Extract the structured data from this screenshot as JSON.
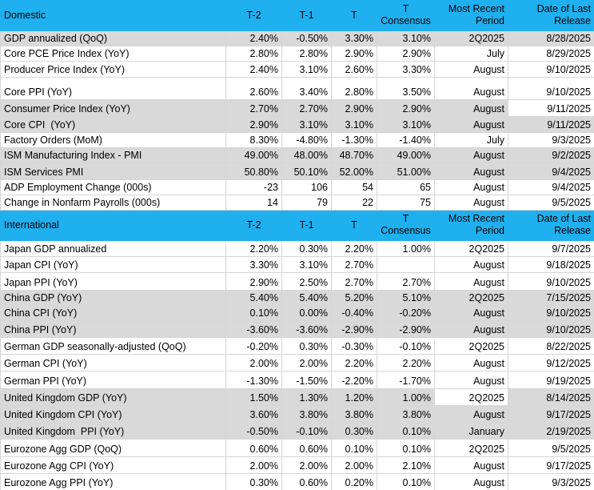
{
  "sections": [
    {
      "header": [
        "Domestic",
        "T-2",
        "T-1",
        "T",
        "T Consensus",
        "Most Recent Period",
        "Date of Last Release"
      ],
      "rows": [
        [
          "GDP annualized (QoQ)",
          "2.40%",
          "-0.50%",
          "3.30%",
          "3.10%",
          "2Q2025",
          "8/28/2025"
        ],
        [
          "Core PCE Price Index (YoY)",
          "2.80%",
          "2.80%",
          "2.90%",
          "2.90%",
          "July",
          "8/29/2025"
        ],
        [
          "Producer Price Index (YoY)",
          "2.40%",
          "3.10%",
          "2.60%",
          "3.30%",
          "August",
          "9/10/2025"
        ],
        [
          "Core PPI (YoY)",
          "2.60%",
          "3.40%",
          "2.80%",
          "3.50%",
          "August",
          "9/10/2025"
        ],
        [
          "Consumer Price Index (YoY)",
          "2.70%",
          "2.70%",
          "2.90%",
          "2.90%",
          "August",
          "9/11/2025"
        ],
        [
          "Core CPI  (YoY)",
          "2.90%",
          "3.10%",
          "3.10%",
          "3.10%",
          "August",
          "9/11/2025"
        ],
        [
          "Factory Orders (MoM)",
          "8.30%",
          "-4.80%",
          "-1.30%",
          "-1.40%",
          "July",
          "9/3/2025"
        ],
        [
          "ISM Manufacturing Index - PMI",
          "49.00%",
          "48.00%",
          "48.70%",
          "49.00%",
          "August",
          "9/2/2025"
        ],
        [
          "ISM Services PMI",
          "50.80%",
          "50.10%",
          "52.00%",
          "51.00%",
          "August",
          "9/4/2025"
        ],
        [
          "ADP Employment Change (000s)",
          "-23",
          "106",
          "54",
          "65",
          "August",
          "9/4/2025"
        ],
        [
          "Change in Nonfarm Payrolls (000s)",
          "14",
          "79",
          "22",
          "75",
          "August",
          "9/5/2025"
        ]
      ]
    },
    {
      "header": [
        "International",
        "T-2",
        "T-1",
        "T",
        "T Consensus",
        "Most Recent Period",
        "Date of Last Release"
      ],
      "rows": [
        [
          "Japan GDP annualized",
          "2.20%",
          "0.30%",
          "2.20%",
          "1.00%",
          "2Q2025",
          "9/7/2025"
        ],
        [
          "Japan CPI (YoY)",
          "3.30%",
          "3.10%",
          "2.70%",
          null,
          "August",
          "9/18/2025"
        ],
        [
          "Japan PPI (YoY)",
          "2.90%",
          "2.50%",
          "2.70%",
          "2.70%",
          "August",
          "9/10/2025"
        ],
        [
          "China GDP (YoY)",
          "5.40%",
          "5.40%",
          "5.20%",
          "5.10%",
          "2Q2025",
          "7/15/2025"
        ],
        [
          "China CPI (YoY)",
          "0.10%",
          "0.00%",
          "-0.40%",
          "-0.20%",
          "August",
          "9/10/2025"
        ],
        [
          "China PPI (YoY)",
          "-3.60%",
          "-3.60%",
          "-2.90%",
          "-2.90%",
          "August",
          "9/10/2025"
        ],
        [
          "German GDP seasonally-adjusted (QoQ)",
          "-0.20%",
          "0.30%",
          "-0.30%",
          "-0.10%",
          "2Q2025",
          "8/22/2025"
        ],
        [
          "German CPI (YoY)",
          "2.00%",
          "2.00%",
          "2.20%",
          "2.20%",
          "August",
          "9/12/2025"
        ],
        [
          "German PPI (YoY)",
          "-1.30%",
          "-1.50%",
          "-2.20%",
          "-1.70%",
          "August",
          "9/19/2025"
        ],
        [
          "United Kingdom GDP (YoY)",
          "1.50%",
          "1.30%",
          "1.20%",
          "1.00%",
          "2Q2025",
          "8/14/2025"
        ],
        [
          "United Kingdom CPI (YoY)",
          "3.60%",
          "3.80%",
          "3.80%",
          "3.80%",
          "August",
          "9/17/2025"
        ],
        [
          "United Kingdom  PPI (YoY)",
          "-0.50%",
          "-0.10%",
          "0.30%",
          "0.10%",
          "January",
          "2/19/2025"
        ],
        [
          "Eurozone Agg GDP (QoQ)",
          "0.60%",
          "0.60%",
          "0.10%",
          "0.10%",
          "2Q2025",
          "9/5/2025"
        ],
        [
          "Eurozone Agg CPI (YoY)",
          "2.00%",
          "2.00%",
          "2.00%",
          "2.10%",
          "August",
          "9/17/2025"
        ],
        [
          "Eurozone Agg PPI (YoY)",
          "0.30%",
          "0.60%",
          "0.20%",
          "0.10%",
          "August",
          "9/3/2025"
        ]
      ]
    }
  ]
}
